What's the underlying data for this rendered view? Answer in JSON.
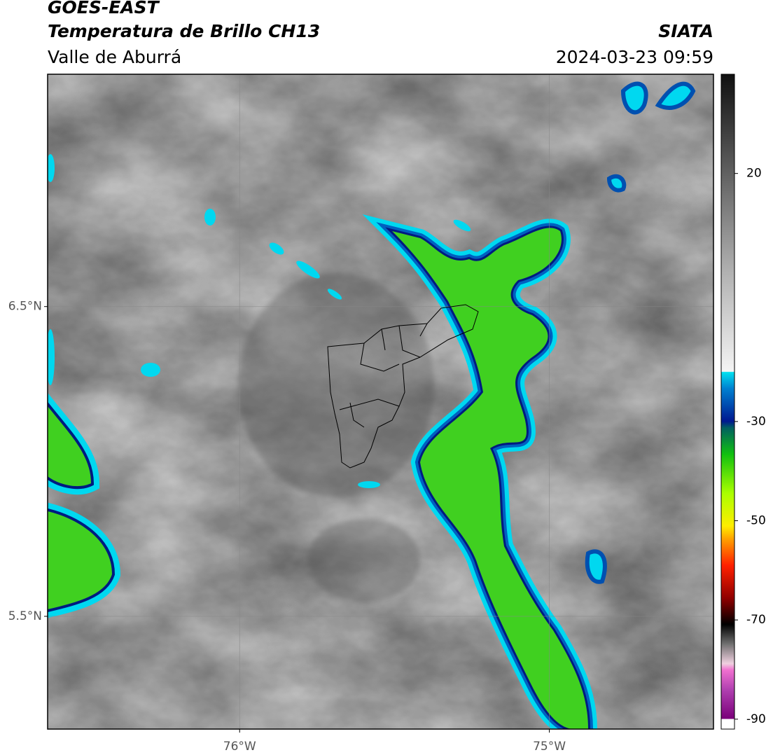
{
  "header": {
    "title": "GOES-EAST",
    "subtitle": "Temperatura de Brillo CH13",
    "region": "Valle de Aburrá",
    "organization": "SIATA",
    "datetime": "2024-03-23 09:59"
  },
  "map": {
    "lonlim": [
      -76.62,
      -74.47
    ],
    "latlim": [
      5.136,
      7.25
    ],
    "lonticks": [
      {
        "value": -76,
        "label": "76°W"
      },
      {
        "value": -75,
        "label": "75°W"
      }
    ],
    "latticks": [
      {
        "value": 6.5,
        "label": "6.5°N"
      },
      {
        "value": 5.5,
        "label": "5.5°N"
      }
    ]
  },
  "colorbar": {
    "lim": [
      -92,
      40
    ],
    "ticks": [
      20,
      -30,
      -50,
      -70,
      -90
    ]
  }
}
